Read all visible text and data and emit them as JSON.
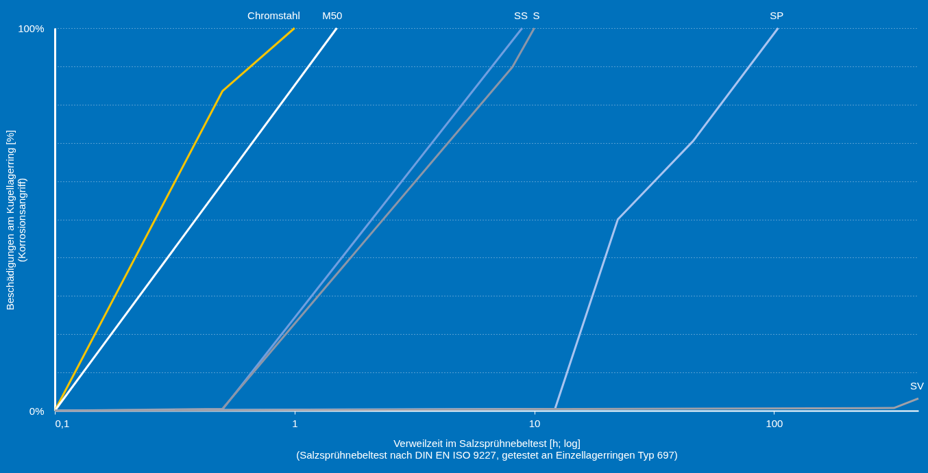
{
  "chart_data": {
    "type": "line",
    "xlabel": "Verweilzeit im Salzsprühnebeltest [h; log]",
    "ylabel": "Beschädigungen am Kugellagerring [%]\n(Korrosionsangriff)",
    "annotations": [
      "(Salzsprühnebeltest nach DIN EN ISO 9227, getestet an Einzellagerringen Typ 697)"
    ],
    "log": "x",
    "grid": "y",
    "legend": false,
    "line_style": "solid",
    "marker": "none",
    "xlim": [
      0.1,
      400
    ],
    "xticks": [
      {
        "value": 0.1,
        "label": "0,1"
      },
      1,
      10,
      100
    ],
    "ylim": [
      0,
      100
    ],
    "yticks": [
      {
        "value": 0,
        "label": "0%"
      },
      {
        "value": 10,
        "label": null
      },
      {
        "value": 20,
        "label": null
      },
      {
        "value": 30,
        "label": null
      },
      {
        "value": 40,
        "label": null
      },
      {
        "value": 50,
        "label": null
      },
      {
        "value": 60,
        "label": null
      },
      {
        "value": 70,
        "label": null
      },
      {
        "value": 80,
        "label": null
      },
      {
        "value": 90,
        "label": null
      },
      {
        "value": 100,
        "label": "100%"
      }
    ],
    "series": [
      {
        "name": "Chromstahl",
        "color": "#f5c400",
        "x": [
          0.1,
          0.5,
          1
        ],
        "values": [
          0,
          83.5,
          100
        ]
      },
      {
        "name": "M50",
        "color": "#ffffff",
        "x": [
          0.1,
          1.5
        ],
        "values": [
          0,
          100
        ]
      },
      {
        "name": "SS",
        "color": "#6f9fe0",
        "x": [
          0.1,
          0.5,
          8.9
        ],
        "values": [
          0,
          0.3,
          100
        ]
      },
      {
        "name": "S",
        "color": "#8c96a8",
        "x": [
          0.1,
          0.5,
          8.1,
          10
        ],
        "values": [
          0,
          0.5,
          89.8,
          100
        ]
      },
      {
        "name": "SP",
        "color": "#a9c4f0",
        "x": [
          0.1,
          12.2,
          22.3,
          46,
          104
        ],
        "values": [
          0,
          0.5,
          50,
          70.5,
          100
        ]
      },
      {
        "name": "SV",
        "color": "#a0a0a8",
        "x": [
          0.1,
          316,
          400
        ],
        "values": [
          0,
          0.7,
          3.2
        ]
      }
    ]
  }
}
